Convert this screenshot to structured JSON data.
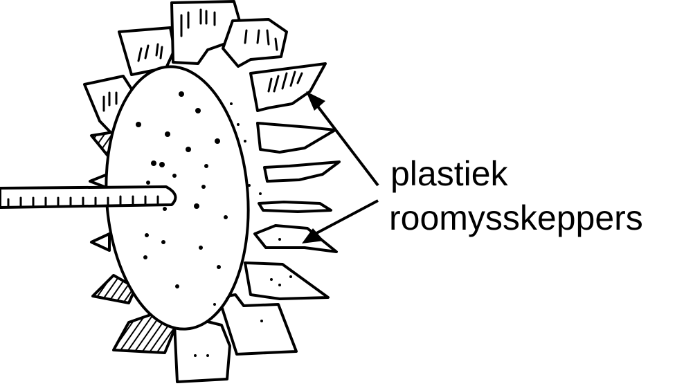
{
  "label": {
    "line1": "plastiek",
    "line2": "roomysskeppers"
  },
  "colors": {
    "ink": "#000000",
    "paper": "#ffffff"
  }
}
